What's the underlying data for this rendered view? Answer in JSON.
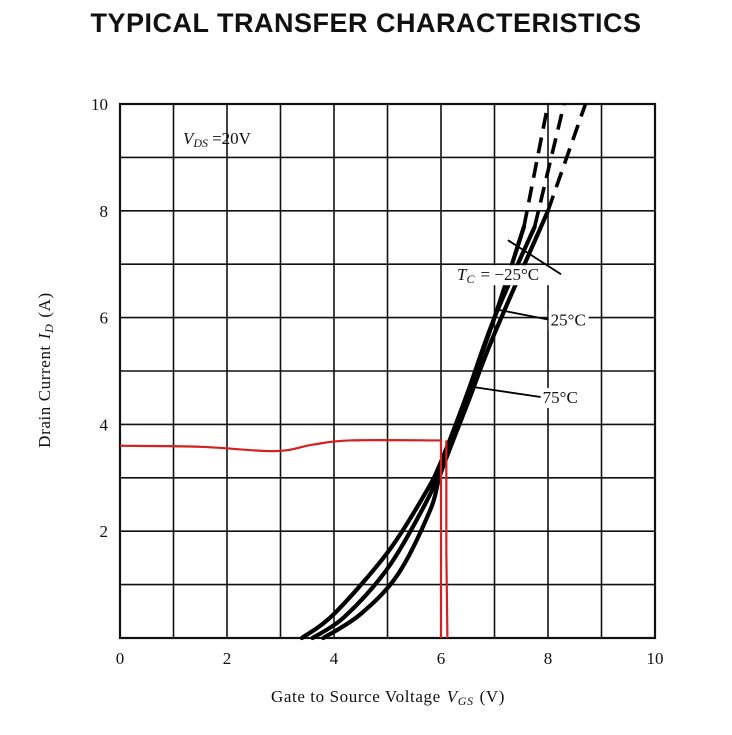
{
  "title": "TYPICAL TRANSFER CHARACTERISTICS",
  "chart_data": {
    "type": "line",
    "xlabel": {
      "text": "Gate to Source Voltage",
      "symbol_main": "V",
      "symbol_sub": "GS",
      "unit": "(V)"
    },
    "ylabel": {
      "text": "Drain Current",
      "symbol_main": "I",
      "symbol_sub": "D",
      "unit": "(A)"
    },
    "xlim": [
      0,
      10
    ],
    "ylim": [
      0,
      10
    ],
    "x_ticks": [
      "0",
      "2",
      "4",
      "6",
      "8",
      "10"
    ],
    "y_ticks": [
      "2",
      "4",
      "6",
      "8",
      "10"
    ],
    "grid": true,
    "condition": {
      "symbol_main": "V",
      "symbol_sub": "DS",
      "value": "=20V"
    },
    "series": [
      {
        "name": "Tc = −25°C",
        "label_parts": {
          "symbol_main": "T",
          "symbol_sub": "C",
          "value": "= −25°C"
        },
        "solid": [
          [
            3.4,
            0
          ],
          [
            4.0,
            0.45
          ],
          [
            5.0,
            1.6
          ],
          [
            5.7,
            2.7
          ],
          [
            6.0,
            3.3
          ],
          [
            6.5,
            4.6
          ],
          [
            7.0,
            6.0
          ],
          [
            7.55,
            7.7
          ]
        ],
        "dashed": [
          [
            7.55,
            7.7
          ],
          [
            8.0,
            10.0
          ]
        ]
      },
      {
        "name": "25°C",
        "label_parts": {
          "value": "25°C"
        },
        "solid": [
          [
            3.6,
            0
          ],
          [
            4.2,
            0.4
          ],
          [
            5.0,
            1.3
          ],
          [
            5.7,
            2.5
          ],
          [
            6.0,
            3.2
          ],
          [
            6.5,
            4.6
          ],
          [
            7.0,
            6.0
          ],
          [
            7.75,
            7.7
          ]
        ],
        "dashed": [
          [
            7.75,
            7.7
          ],
          [
            8.3,
            10.0
          ]
        ]
      },
      {
        "name": "75°C",
        "label_parts": {
          "value": "75°C"
        },
        "solid": [
          [
            3.8,
            0
          ],
          [
            4.5,
            0.45
          ],
          [
            5.2,
            1.2
          ],
          [
            5.8,
            2.4
          ],
          [
            6.0,
            3.1
          ],
          [
            6.5,
            4.4
          ],
          [
            7.0,
            5.7
          ],
          [
            8.0,
            8.0
          ]
        ],
        "dashed": [
          [
            8.0,
            8.0
          ],
          [
            8.7,
            10.0
          ]
        ]
      }
    ],
    "markup": {
      "color": "#d42020",
      "horizontal": [
        [
          0,
          3.6
        ],
        [
          1.5,
          3.58
        ],
        [
          2.9,
          3.5
        ],
        [
          3.6,
          3.62
        ],
        [
          4.3,
          3.7
        ],
        [
          6.0,
          3.7
        ]
      ],
      "vertical": [
        [
          6.0,
          3.7
        ],
        [
          6.0,
          0
        ]
      ],
      "vertical2": [
        [
          6.1,
          3.7
        ],
        [
          6.1,
          1.6
        ],
        [
          6.12,
          0
        ]
      ]
    },
    "annotations": [
      {
        "series": "Tc = −25°C",
        "label_at": [
          6.3,
          6.7
        ],
        "points_to": [
          7.25,
          7.45
        ]
      },
      {
        "series": "25°C",
        "label_at": [
          8.05,
          5.85
        ],
        "points_to": [
          7.05,
          6.15
        ]
      },
      {
        "series": "75°C",
        "label_at": [
          7.9,
          4.4
        ],
        "points_to": [
          6.6,
          4.7
        ]
      }
    ]
  }
}
